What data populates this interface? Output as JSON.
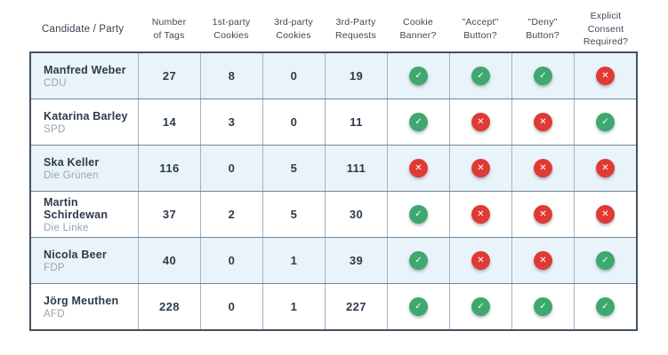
{
  "colors": {
    "green": "#3ea86e",
    "red": "#e03a34",
    "row_highlight": "#e9f4fa",
    "text_dark": "#2e3a4c",
    "text_gray": "#99a3ac",
    "border_dark": "#44515e"
  },
  "icons": {
    "check": "✓",
    "cross": "✕"
  },
  "chart_data": {
    "type": "table",
    "columns": [
      {
        "label": "Candidate / Party",
        "sub": ""
      },
      {
        "label": "Number",
        "sub": "of Tags"
      },
      {
        "label": "1st-party",
        "sub": "Cookies"
      },
      {
        "label": "3rd-party",
        "sub": "Cookies"
      },
      {
        "label": "3rd-Party",
        "sub": "Requests"
      },
      {
        "label": "Cookie",
        "sub": "Banner?"
      },
      {
        "label": "\"Accept\"",
        "sub": "Button?"
      },
      {
        "label": "\"Deny\"",
        "sub": "Button?"
      },
      {
        "label": "Explicit Consent",
        "sub": "Required?"
      }
    ],
    "rows": [
      {
        "name": "Manfred Weber",
        "party": "CDU",
        "tags": "27",
        "first_party_cookies": "8",
        "third_party_cookies": "0",
        "third_party_requests": "19",
        "cookie_banner": "yes",
        "accept_button": "yes",
        "deny_button": "yes",
        "explicit_consent": "no"
      },
      {
        "name": "Katarina Barley",
        "party": "SPD",
        "tags": "14",
        "first_party_cookies": "3",
        "third_party_cookies": "0",
        "third_party_requests": "11",
        "cookie_banner": "yes",
        "accept_button": "no",
        "deny_button": "no",
        "explicit_consent": "yes"
      },
      {
        "name": "Ska Keller",
        "party": "Die Grünen",
        "tags": "116",
        "first_party_cookies": "0",
        "third_party_cookies": "5",
        "third_party_requests": "111",
        "cookie_banner": "no",
        "accept_button": "no",
        "deny_button": "no",
        "explicit_consent": "no"
      },
      {
        "name": "Martin Schirdewan",
        "party": "Die Linke",
        "tags": "37",
        "first_party_cookies": "2",
        "third_party_cookies": "5",
        "third_party_requests": "30",
        "cookie_banner": "yes",
        "accept_button": "no",
        "deny_button": "no",
        "explicit_consent": "no"
      },
      {
        "name": "Nicola Beer",
        "party": "FDP",
        "tags": "40",
        "first_party_cookies": "0",
        "third_party_cookies": "1",
        "third_party_requests": "39",
        "cookie_banner": "yes",
        "accept_button": "no",
        "deny_button": "no",
        "explicit_consent": "yes"
      },
      {
        "name": "Jörg Meuthen",
        "party": "AFD",
        "tags": "228",
        "first_party_cookies": "0",
        "third_party_cookies": "1",
        "third_party_requests": "227",
        "cookie_banner": "yes",
        "accept_button": "yes",
        "deny_button": "yes",
        "explicit_consent": "yes"
      }
    ]
  }
}
